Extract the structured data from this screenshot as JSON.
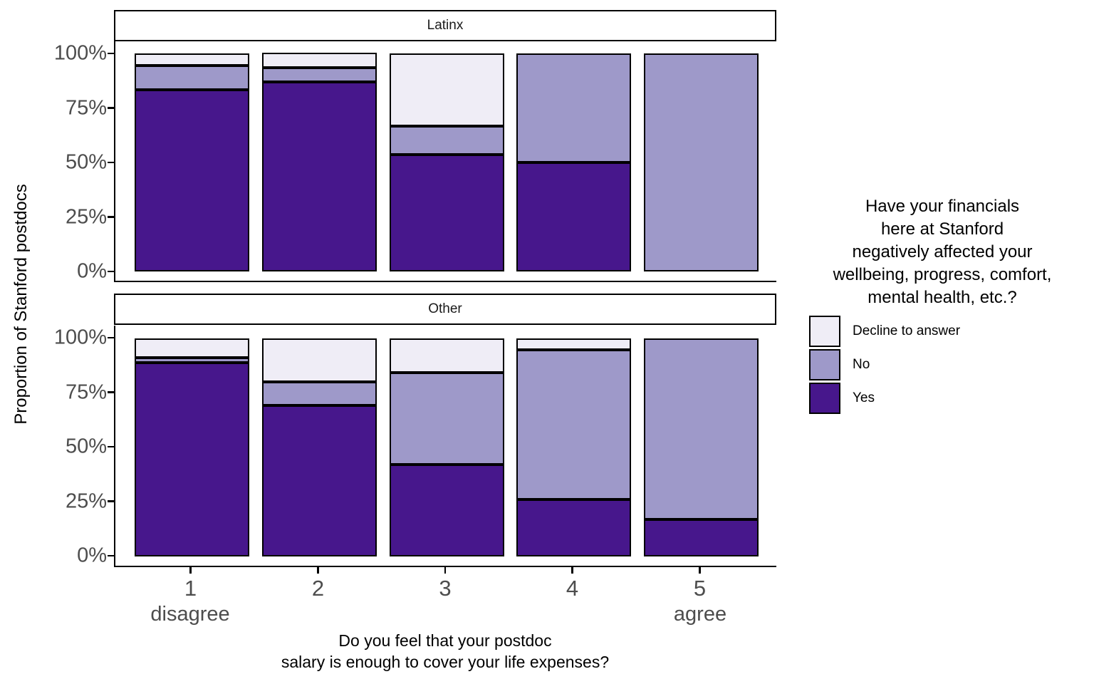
{
  "y_axis": {
    "title": "Proportion of Stanford postdocs",
    "ticks": [
      "100%",
      "75%",
      "50%",
      "25%",
      "0%"
    ]
  },
  "x_axis": {
    "title_lines": [
      "Do you feel that your postdoc",
      "salary is enough to cover your life expenses?"
    ],
    "ticks": [
      "1",
      "2",
      "3",
      "4",
      "5"
    ],
    "anchor_left": "disagree",
    "anchor_right": "agree"
  },
  "legend": {
    "title_lines": [
      "Have your financials",
      "here at Stanford",
      "negatively affected your",
      "wellbeing, progress, comfort,",
      "mental health, etc.?"
    ],
    "items": [
      {
        "label": "Decline to answer",
        "color": "#EFEDF6"
      },
      {
        "label": "No",
        "color": "#9E99C9"
      },
      {
        "label": "Yes",
        "color": "#47178C"
      }
    ]
  },
  "chart_data": {
    "type": "bar",
    "subtype": "stacked-percent-faceted",
    "title": "",
    "xlabel": "Do you feel that your postdoc salary is enough to cover your life expenses?",
    "ylabel": "Proportion of Stanford postdocs",
    "ylim": [
      0,
      100
    ],
    "grid": false,
    "legend_title": "Have your financials here at Stanford negatively affected your wellbeing, progress, comfort, mental health, etc.?",
    "legend_position": "right",
    "colors": {
      "Yes": "#47178C",
      "No": "#9E99C9",
      "Decline to answer": "#EFEDF6"
    },
    "stack_order_bottom_to_top": [
      "Yes",
      "No",
      "Decline to answer"
    ],
    "facets": [
      {
        "name": "Latinx",
        "categories": [
          "1",
          "2",
          "3",
          "4",
          "5"
        ],
        "series": [
          {
            "name": "Yes",
            "values": [
              83.3,
              86.7,
              53.3,
              50.0,
              0.0
            ]
          },
          {
            "name": "No",
            "values": [
              11.1,
              6.7,
              13.3,
              50.0,
              100.0
            ]
          },
          {
            "name": "Decline to answer",
            "values": [
              5.6,
              6.7,
              33.3,
              0.0,
              0.0
            ]
          }
        ]
      },
      {
        "name": "Other",
        "categories": [
          "1",
          "2",
          "3",
          "4",
          "5"
        ],
        "series": [
          {
            "name": "Yes",
            "values": [
              88.6,
              69.0,
              42.1,
              26.0,
              16.7
            ]
          },
          {
            "name": "No",
            "values": [
              2.3,
              11.0,
              42.1,
              68.5,
              83.3
            ]
          },
          {
            "name": "Decline to answer",
            "values": [
              9.1,
              20.0,
              15.8,
              5.5,
              0.0
            ]
          }
        ]
      }
    ]
  }
}
